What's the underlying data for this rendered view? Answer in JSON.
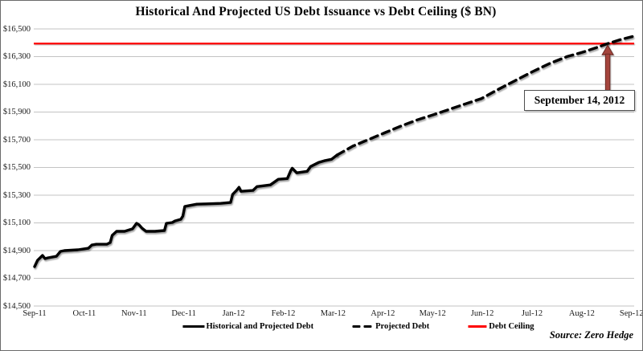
{
  "chart_data": {
    "type": "line",
    "title": "Historical And Projected US Debt Issuance vs Debt Ceiling ($ BN)",
    "source": "Source: Zero Hedge",
    "grid": true,
    "legend_position": "bottom",
    "ylim": [
      14500,
      16500
    ],
    "y_tick_step": 200,
    "y_tick_labels": [
      "$16,500",
      "$16,300",
      "$16,100",
      "$15,900",
      "$15,700",
      "$15,500",
      "$15,300",
      "$15,100",
      "$14,900",
      "$14,700",
      "$14,500"
    ],
    "x_tick_labels": [
      "Sep-11",
      "Oct-11",
      "Nov-11",
      "Dec-11",
      "Jan-12",
      "Feb-12",
      "Mar-12",
      "Apr-12",
      "May-12",
      "Jun-12",
      "Jul-12",
      "Aug-12",
      "Sep-12"
    ],
    "x_unit": "months_after_Sep_2011",
    "annotation": {
      "label": "September 14, 2012",
      "x": 11.52,
      "points_to_value": 16394
    },
    "series": [
      {
        "name": "Historical and Projected Debt",
        "style": "solid",
        "color": "#000000",
        "points": [
          [
            0,
            14784
          ],
          [
            0.06,
            14830
          ],
          [
            0.16,
            14865
          ],
          [
            0.21,
            14842
          ],
          [
            0.27,
            14848
          ],
          [
            0.44,
            14859
          ],
          [
            0.52,
            14894
          ],
          [
            0.6,
            14900
          ],
          [
            0.87,
            14906
          ],
          [
            1.08,
            14917
          ],
          [
            1.15,
            14940
          ],
          [
            1.24,
            14946
          ],
          [
            1.45,
            14946
          ],
          [
            1.52,
            14958
          ],
          [
            1.56,
            15010
          ],
          [
            1.65,
            15039
          ],
          [
            1.81,
            15039
          ],
          [
            1.97,
            15057
          ],
          [
            2.05,
            15097
          ],
          [
            2.1,
            15086
          ],
          [
            2.16,
            15062
          ],
          [
            2.24,
            15039
          ],
          [
            2.42,
            15039
          ],
          [
            2.61,
            15045
          ],
          [
            2.65,
            15097
          ],
          [
            2.77,
            15103
          ],
          [
            2.82,
            15114
          ],
          [
            2.94,
            15126
          ],
          [
            2.98,
            15149
          ],
          [
            3.02,
            15218
          ],
          [
            3.1,
            15224
          ],
          [
            3.26,
            15235
          ],
          [
            3.74,
            15241
          ],
          [
            3.94,
            15247
          ],
          [
            3.98,
            15305
          ],
          [
            4.06,
            15334
          ],
          [
            4.11,
            15357
          ],
          [
            4.15,
            15328
          ],
          [
            4.39,
            15334
          ],
          [
            4.47,
            15362
          ],
          [
            4.74,
            15374
          ],
          [
            4.9,
            15415
          ],
          [
            5.08,
            15420
          ],
          [
            5.15,
            15478
          ],
          [
            5.18,
            15495
          ],
          [
            5.27,
            15461
          ],
          [
            5.48,
            15472
          ],
          [
            5.55,
            15507
          ],
          [
            5.71,
            15536
          ],
          [
            5.82,
            15548
          ],
          [
            5.97,
            15559
          ],
          [
            6.08,
            15590
          ]
        ]
      },
      {
        "name": "Projected Debt",
        "style": "dashed",
        "color": "#000000",
        "points": [
          [
            6.08,
            15590
          ],
          [
            6.4,
            15655
          ],
          [
            6.73,
            15704
          ],
          [
            7.05,
            15752
          ],
          [
            7.37,
            15800
          ],
          [
            7.69,
            15843
          ],
          [
            8.02,
            15881
          ],
          [
            8.34,
            15920
          ],
          [
            8.66,
            15959
          ],
          [
            8.98,
            15997
          ],
          [
            9.3,
            16060
          ],
          [
            9.65,
            16125
          ],
          [
            10.0,
            16190
          ],
          [
            10.35,
            16250
          ],
          [
            10.7,
            16300
          ],
          [
            11.0,
            16330
          ],
          [
            11.27,
            16362
          ],
          [
            11.52,
            16394
          ],
          [
            11.8,
            16425
          ],
          [
            12.05,
            16448
          ]
        ]
      },
      {
        "name": "Debt Ceiling",
        "style": "horizontal",
        "color": "#FE0000",
        "value": 16394
      }
    ],
    "arrow_color": "#A5453D",
    "arrow_border_color": "#6B2B24",
    "gridline_color": "#C3C3C3"
  }
}
